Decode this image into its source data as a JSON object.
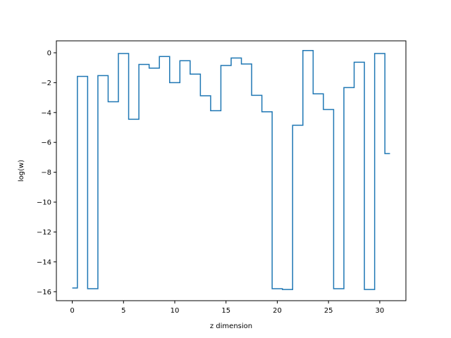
{
  "chart_data": {
    "type": "line",
    "drawstyle": "steps-mid",
    "title": "",
    "xlabel": "z dimension",
    "ylabel": "log(w)",
    "xlim": [
      -1.55,
      32.55
    ],
    "ylim": [
      -16.6,
      0.8
    ],
    "xticks": [
      0,
      5,
      10,
      15,
      20,
      25,
      30
    ],
    "yticks": [
      0,
      -2,
      -4,
      -6,
      -8,
      -10,
      -12,
      -14,
      -16
    ],
    "ytick_labels": [
      "0",
      "−2",
      "−4",
      "−6",
      "−8",
      "−10",
      "−12",
      "−14",
      "−16"
    ],
    "grid": false,
    "color": "#1f77b4",
    "series": [
      {
        "x": [
          0,
          1,
          2,
          3,
          4,
          5,
          6,
          7,
          8,
          9,
          10,
          11,
          12,
          13,
          14,
          15,
          16,
          17,
          18,
          19,
          20,
          21,
          22,
          23,
          24,
          25,
          26,
          27,
          28,
          29,
          30,
          31
        ],
        "values": [
          -15.75,
          -1.58,
          -15.8,
          -1.53,
          -3.28,
          -0.05,
          -4.45,
          -0.78,
          -1.03,
          -0.25,
          -2.0,
          -0.53,
          -1.43,
          -2.88,
          -3.88,
          -0.85,
          -0.35,
          -0.75,
          -2.85,
          -3.95,
          -15.8,
          -15.85,
          -4.85,
          0.15,
          -2.75,
          -3.8,
          -15.8,
          -2.33,
          -0.63,
          -15.85,
          -0.05,
          -6.75
        ]
      }
    ]
  }
}
